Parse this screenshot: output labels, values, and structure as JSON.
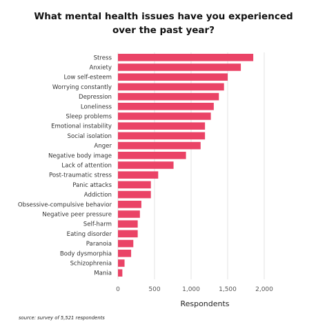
{
  "chart_data": {
    "type": "bar",
    "orientation": "horizontal",
    "title_lines": [
      "What mental health issues have you experienced",
      "over the past year?"
    ],
    "xlabel": "Respondents",
    "ylabel": "",
    "source": "source: survey of 5,521 respondents",
    "categories": [
      "Stress",
      "Anxiety",
      "Low self-esteem",
      "Worrying constantly",
      "Depression",
      "Loneliness",
      "Sleep problems",
      "Emotional instability",
      "Social isolation",
      "Anger",
      "Negative body image",
      "Lack of attention",
      "Post-traumatic stress",
      "Panic attacks",
      "Addiction",
      "Obsessive-compulsive behavior",
      "Negative peer pressure",
      "Self-harm",
      "Eating disorder",
      "Paranoia",
      "Body dysmorphia",
      "Schizophrenia",
      "Mania"
    ],
    "values": [
      1850,
      1680,
      1500,
      1450,
      1380,
      1310,
      1270,
      1190,
      1190,
      1130,
      930,
      760,
      550,
      450,
      450,
      320,
      300,
      270,
      270,
      210,
      180,
      90,
      60
    ],
    "xlim": [
      0,
      2000
    ],
    "xticks": [
      0,
      500,
      1000,
      1500,
      2000
    ],
    "xtick_labels": [
      "0",
      "500",
      "1,000",
      "1,500",
      "2,000"
    ],
    "grid": true,
    "bar_color": "#ea4366"
  }
}
